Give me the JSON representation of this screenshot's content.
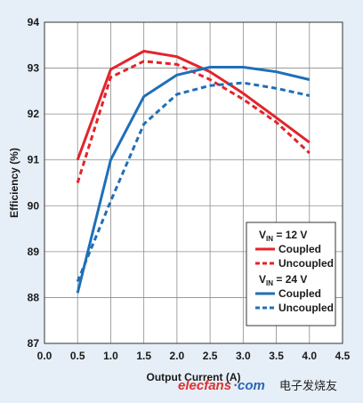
{
  "chart_data": {
    "type": "line",
    "xlabel": "Output Current (A)",
    "ylabel": "Efficiency (%)",
    "xlim": [
      0,
      4.5
    ],
    "ylim": [
      87,
      94
    ],
    "xticks": [
      "0.0",
      "0.5",
      "1.0",
      "1.5",
      "2.0",
      "2.5",
      "3.0",
      "3.5",
      "4.0",
      "4.5"
    ],
    "yticks": [
      "87",
      "88",
      "89",
      "90",
      "91",
      "92",
      "93",
      "94"
    ],
    "grid": "on",
    "legend_position": "bottom-right",
    "legend_groups": [
      {
        "title_main": "V",
        "title_sub": "IN",
        "title_rest": " = 12 V"
      },
      {
        "title_main": "V",
        "title_sub": "IN",
        "title_rest": " = 24 V"
      }
    ],
    "series": [
      {
        "name": "Coupled",
        "group": 0,
        "color": "#e3242b",
        "dash": "solid",
        "x": [
          0.5,
          1.0,
          1.5,
          2.0,
          2.5,
          3.0,
          3.5,
          4.0
        ],
        "y": [
          91.0,
          92.97,
          93.37,
          93.25,
          92.92,
          92.45,
          91.92,
          91.38
        ]
      },
      {
        "name": "Uncoupled",
        "group": 0,
        "color": "#e3242b",
        "dash": "dashed",
        "x": [
          0.5,
          1.0,
          1.5,
          2.0,
          2.5,
          3.0,
          3.5,
          4.0
        ],
        "y": [
          90.5,
          92.8,
          93.15,
          93.08,
          92.75,
          92.32,
          91.82,
          91.15
        ]
      },
      {
        "name": "Coupled",
        "group": 1,
        "color": "#1f6fb8",
        "dash": "solid",
        "x": [
          0.5,
          1.0,
          1.5,
          2.0,
          2.5,
          3.0,
          3.5,
          4.0
        ],
        "y": [
          88.1,
          91.0,
          92.38,
          92.85,
          93.02,
          93.02,
          92.92,
          92.75
        ]
      },
      {
        "name": "Uncoupled",
        "group": 1,
        "color": "#1f6fb8",
        "dash": "dashed",
        "x": [
          0.5,
          1.0,
          1.5,
          2.0,
          2.5,
          3.0,
          3.5,
          4.0
        ],
        "y": [
          88.35,
          90.1,
          91.78,
          92.43,
          92.62,
          92.68,
          92.56,
          92.4
        ]
      }
    ]
  },
  "watermark": {
    "text": "elecfans",
    "text_suffix": "·com",
    "cn": "电子发烧友",
    "color_main": "#e03030",
    "color_suffix": "#2b65b8"
  }
}
